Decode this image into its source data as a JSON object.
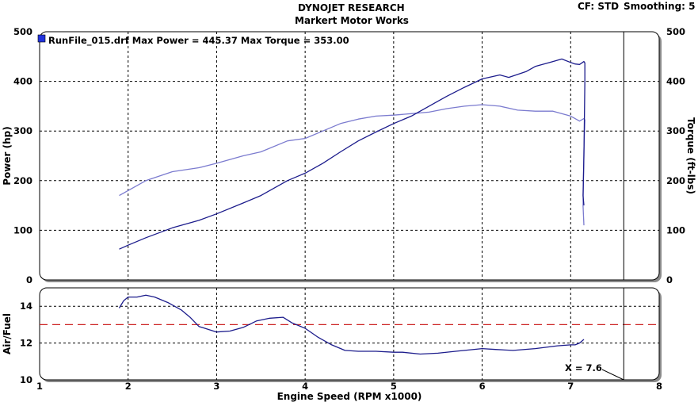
{
  "header": {
    "title": "DYNOJET RESEARCH",
    "subtitle": "Markert Motor Works",
    "cf_label": "CF: STD",
    "smoothing_label": "Smoothing: 5"
  },
  "chart_data": [
    {
      "type": "line",
      "title": "",
      "legend": "RunFile_015.drf Max Power = 445.37     Max Torque = 353.00",
      "legend_placement": "top-left",
      "xlabel": "Engine Speed (RPM x1000)",
      "ylabel": "Power (hp)",
      "y2label": "Torque (ft-lbs)",
      "xlim": [
        1,
        8
      ],
      "ylim": [
        0,
        500
      ],
      "y2lim": [
        0,
        500
      ],
      "x_ticks": [
        1,
        2,
        3,
        4,
        5,
        6,
        7,
        8
      ],
      "y_ticks": [
        0,
        100,
        200,
        300,
        400,
        500
      ],
      "grid": true,
      "cursor_x": 7.6,
      "colors": {
        "power": "#1c1c8c",
        "torque": "#7b7bcf",
        "legend_swatch": "#2233dd"
      },
      "series": [
        {
          "key": "power",
          "x": [
            1.9,
            2.0,
            2.2,
            2.5,
            2.8,
            3.0,
            3.3,
            3.5,
            3.8,
            4.0,
            4.2,
            4.4,
            4.6,
            4.8,
            5.0,
            5.2,
            5.4,
            5.6,
            5.8,
            6.0,
            6.2,
            6.3,
            6.5,
            6.6,
            6.8,
            6.9,
            7.0,
            7.05,
            7.1,
            7.15,
            7.16,
            7.16,
            7.15,
            7.14,
            7.15
          ],
          "values": [
            62,
            70,
            85,
            105,
            120,
            133,
            155,
            170,
            200,
            215,
            235,
            258,
            280,
            298,
            315,
            330,
            350,
            370,
            388,
            405,
            413,
            408,
            420,
            430,
            440,
            445,
            438,
            435,
            434,
            440,
            437,
            400,
            250,
            170,
            150
          ]
        },
        {
          "key": "torque",
          "x": [
            1.9,
            2.0,
            2.2,
            2.5,
            2.8,
            3.0,
            3.3,
            3.5,
            3.8,
            4.0,
            4.2,
            4.4,
            4.6,
            4.8,
            5.0,
            5.2,
            5.4,
            5.6,
            5.8,
            6.0,
            6.2,
            6.4,
            6.6,
            6.8,
            7.0,
            7.1,
            7.15,
            7.16,
            7.15,
            7.14,
            7.15
          ],
          "values": [
            170,
            180,
            200,
            218,
            226,
            235,
            250,
            258,
            280,
            285,
            300,
            315,
            324,
            330,
            332,
            335,
            338,
            345,
            350,
            353,
            350,
            342,
            340,
            340,
            330,
            320,
            325,
            322,
            260,
            150,
            110
          ]
        }
      ]
    },
    {
      "type": "line",
      "title": "",
      "xlabel": "Engine Speed (RPM x1000)",
      "ylabel": "Air/Fuel",
      "xlim": [
        1,
        8
      ],
      "ylim": [
        10,
        15
      ],
      "x_ticks": [
        1,
        2,
        3,
        4,
        5,
        6,
        7,
        8
      ],
      "y_ticks": [
        10,
        12,
        14
      ],
      "grid": true,
      "reference_line": 13,
      "cursor_x": 7.6,
      "cursor_label": "X = 7.6",
      "colors": {
        "afr": "#1c1c8c",
        "reference": "#cc2222"
      },
      "series": [
        {
          "key": "afr",
          "x": [
            1.9,
            1.95,
            2.0,
            2.1,
            2.2,
            2.3,
            2.45,
            2.6,
            2.7,
            2.8,
            3.0,
            3.15,
            3.3,
            3.45,
            3.6,
            3.75,
            3.85,
            4.0,
            4.15,
            4.3,
            4.45,
            4.6,
            4.8,
            5.0,
            5.1,
            5.3,
            5.5,
            5.7,
            6.0,
            6.15,
            6.35,
            6.6,
            6.85,
            7.0,
            7.05,
            7.1,
            7.15
          ],
          "values": [
            13.9,
            14.3,
            14.5,
            14.5,
            14.6,
            14.5,
            14.2,
            13.8,
            13.4,
            12.9,
            12.6,
            12.65,
            12.85,
            13.2,
            13.35,
            13.4,
            13.1,
            12.8,
            12.3,
            11.9,
            11.6,
            11.55,
            11.55,
            11.5,
            11.5,
            11.4,
            11.45,
            11.55,
            11.7,
            11.65,
            11.6,
            11.7,
            11.85,
            11.9,
            11.9,
            12.0,
            12.2
          ]
        }
      ]
    }
  ]
}
